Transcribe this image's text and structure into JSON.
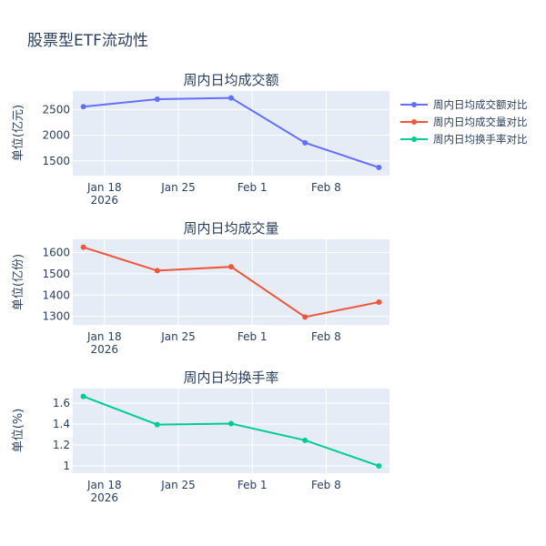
{
  "title": "股票型ETF流动性",
  "colors": {
    "plot_bg": "#E5ECF6",
    "grid": "#ffffff",
    "text": "#2a3f5f",
    "series_amount": "#636EFA",
    "series_volume": "#EF553B",
    "series_turnover": "#00CC96"
  },
  "legend": {
    "placement": "top-right",
    "items": [
      "周内日均成交额对比",
      "周内日均成交量对比",
      "周内日均换手率对比"
    ]
  },
  "chart_data": [
    {
      "type": "line",
      "title": "周内日均成交额",
      "ylabel": "单位(亿元)",
      "x": [
        "2026-01-16",
        "2026-01-23",
        "2026-01-30",
        "2026-02-06",
        "2026-02-13"
      ],
      "y": [
        2555,
        2700,
        2725,
        1855,
        1375
      ],
      "series_name": "周内日均成交额对比",
      "yticks": [
        1500,
        2000,
        2500
      ],
      "ytick_labels": [
        "1500",
        "2000",
        "2500"
      ],
      "ylim": [
        1215,
        2860
      ],
      "xticks": [
        "2026-01-18",
        "2026-01-25",
        "2026-02-01",
        "2026-02-08"
      ],
      "xtick_labels": [
        "Jan 18",
        "Jan 25",
        "Feb 1",
        "Feb 8"
      ],
      "xtick_year": "2026",
      "xlim": [
        "2026-01-15",
        "2026-02-14"
      ],
      "grid": true
    },
    {
      "type": "line",
      "title": "周内日均成交量",
      "ylabel": "单位(亿份)",
      "x": [
        "2026-01-16",
        "2026-01-23",
        "2026-01-30",
        "2026-02-06",
        "2026-02-13"
      ],
      "y": [
        1625,
        1515,
        1533,
        1297,
        1367
      ],
      "series_name": "周内日均成交量对比",
      "yticks": [
        1300,
        1400,
        1500,
        1600
      ],
      "ytick_labels": [
        "1300",
        "1400",
        "1500",
        "1600"
      ],
      "ylim": [
        1260,
        1662
      ],
      "xticks": [
        "2026-01-18",
        "2026-01-25",
        "2026-02-01",
        "2026-02-08"
      ],
      "xtick_labels": [
        "Jan 18",
        "Jan 25",
        "Feb 1",
        "Feb 8"
      ],
      "xtick_year": "2026",
      "xlim": [
        "2026-01-15",
        "2026-02-14"
      ],
      "grid": true
    },
    {
      "type": "line",
      "title": "周内日均换手率",
      "ylabel": "单位(%)",
      "x": [
        "2026-01-16",
        "2026-01-23",
        "2026-01-30",
        "2026-02-06",
        "2026-02-13"
      ],
      "y": [
        1.665,
        1.395,
        1.405,
        1.245,
        1.0
      ],
      "series_name": "周内日均换手率对比",
      "yticks": [
        1.0,
        1.2,
        1.4,
        1.6
      ],
      "ytick_labels": [
        "1",
        "1.2",
        "1.4",
        "1.6"
      ],
      "ylim": [
        0.93,
        1.74
      ],
      "xticks": [
        "2026-01-18",
        "2026-01-25",
        "2026-02-01",
        "2026-02-08"
      ],
      "xtick_labels": [
        "Jan 18",
        "Jan 25",
        "Feb 1",
        "Feb 8"
      ],
      "xtick_year": "2026",
      "xlim": [
        "2026-01-15",
        "2026-02-14"
      ],
      "grid": true
    }
  ]
}
